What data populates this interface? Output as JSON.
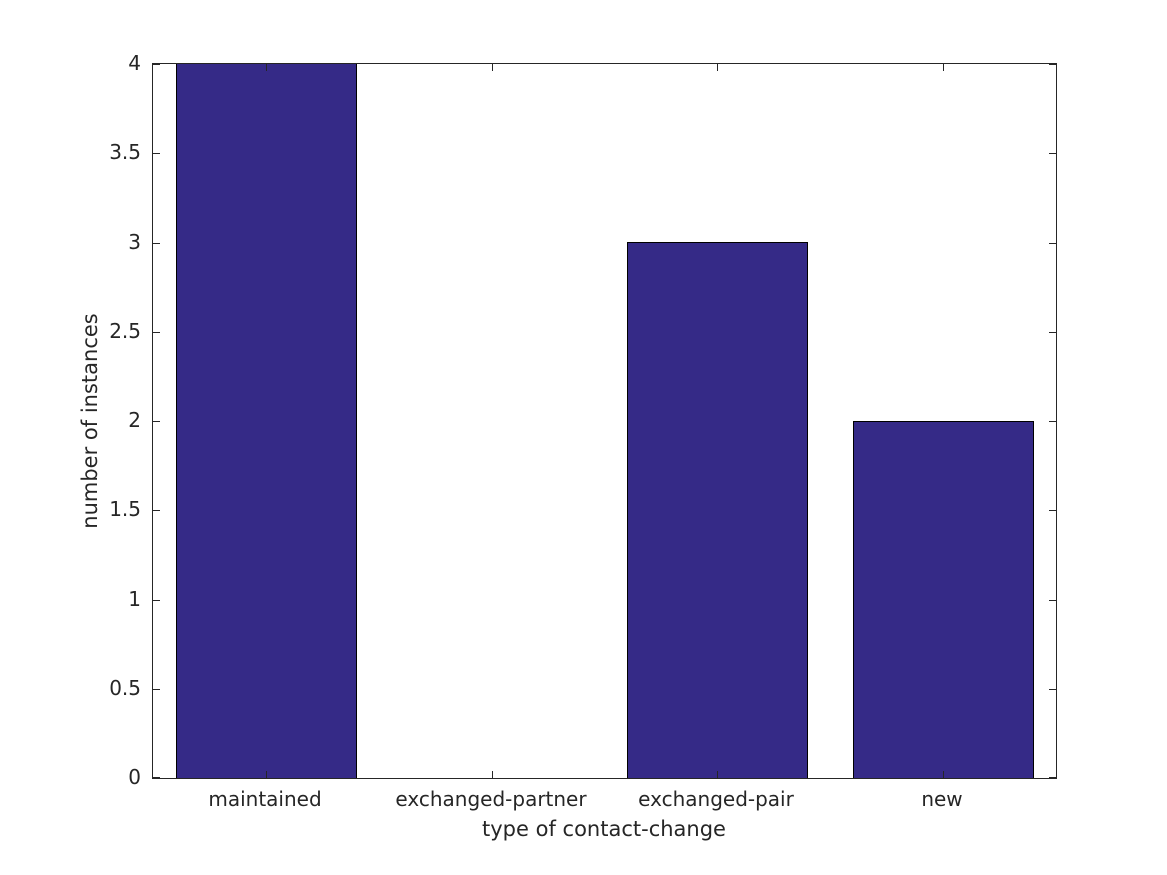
{
  "chart_data": {
    "type": "bar",
    "categories": [
      "maintained",
      "exchanged-partner",
      "exchanged-pair",
      "new"
    ],
    "values": [
      4,
      0,
      3,
      2
    ],
    "title": "",
    "xlabel": "type of contact-change",
    "ylabel": "number of instances",
    "ylim": [
      0,
      4
    ],
    "yticks": [
      0,
      0.5,
      1,
      1.5,
      2,
      2.5,
      3,
      3.5,
      4
    ],
    "ytick_labels": [
      "0",
      "0.5",
      "1",
      "1.5",
      "2",
      "2.5",
      "3",
      "3.5",
      "4"
    ],
    "bar_width_fraction": 0.8,
    "bar_color": "#352a87",
    "bar_edge_color": "#000000",
    "axis_color": "#262626",
    "text_color": "#262626",
    "grid": false,
    "legend": null,
    "tick_direction": "in",
    "box": true
  }
}
